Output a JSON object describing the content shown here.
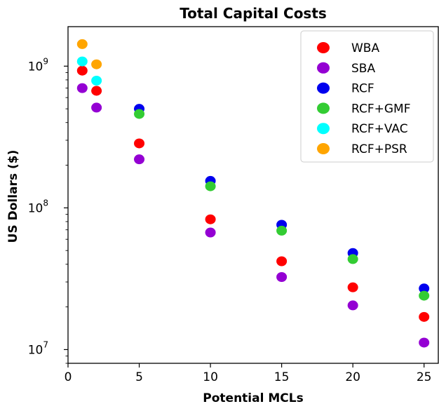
{
  "chart_data": {
    "type": "scatter",
    "title": "Total Capital Costs",
    "xlabel": "Potential MCLs",
    "ylabel": "US Dollars ($)",
    "xlim": [
      0,
      26
    ],
    "ylim": [
      8000000,
      1900000000
    ],
    "yscale": "log",
    "grid": false,
    "legend_position": "top-right",
    "xticks": [
      0,
      5,
      10,
      15,
      20,
      25
    ],
    "yticks": [
      {
        "value": 10000000,
        "base": "10",
        "exp": "7"
      },
      {
        "value": 100000000,
        "base": "10",
        "exp": "8"
      },
      {
        "value": 1000000000,
        "base": "10",
        "exp": "9"
      }
    ],
    "series": [
      {
        "name": "WBA",
        "color": "#ff0000",
        "points": [
          [
            1,
            930000000
          ],
          [
            2,
            670000000
          ],
          [
            5,
            285000000
          ],
          [
            10,
            83000000
          ],
          [
            15,
            42000000
          ],
          [
            20,
            27500000
          ],
          [
            25,
            17000000
          ]
        ]
      },
      {
        "name": "SBA",
        "color": "#9400d3",
        "points": [
          [
            1,
            700000000
          ],
          [
            2,
            510000000
          ],
          [
            5,
            220000000
          ],
          [
            10,
            67000000
          ],
          [
            15,
            32500000
          ],
          [
            20,
            20500000
          ],
          [
            25,
            11200000
          ]
        ]
      },
      {
        "name": "RCF",
        "color": "#0000ee",
        "points": [
          [
            5,
            500000000
          ],
          [
            10,
            155000000
          ],
          [
            15,
            76000000
          ],
          [
            20,
            48000000
          ],
          [
            25,
            27000000
          ]
        ]
      },
      {
        "name": "RCF+GMF",
        "color": "#33cc33",
        "points": [
          [
            5,
            460000000
          ],
          [
            10,
            142000000
          ],
          [
            15,
            69000000
          ],
          [
            20,
            43500000
          ],
          [
            25,
            24000000
          ]
        ]
      },
      {
        "name": "RCF+VAC",
        "color": "#00ffff",
        "points": [
          [
            1,
            1080000000
          ],
          [
            2,
            790000000
          ]
        ]
      },
      {
        "name": "RCF+PSR",
        "color": "#ffa500",
        "points": [
          [
            1,
            1430000000
          ],
          [
            2,
            1030000000
          ]
        ]
      }
    ]
  }
}
